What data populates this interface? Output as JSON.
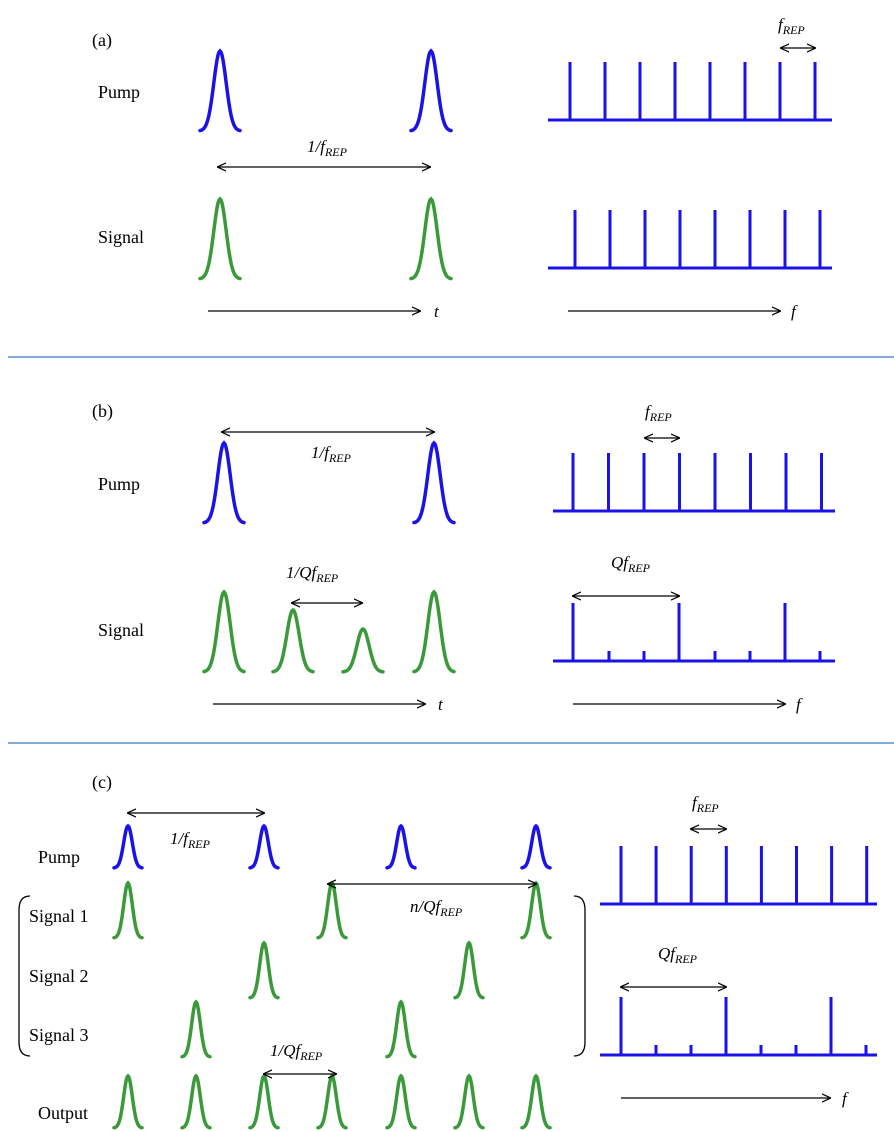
{
  "colors": {
    "pump": "#1a12e6",
    "signal": "#3a9a3a",
    "divider": "#5b8fd0",
    "arrow": "#000000"
  },
  "panel_a": {
    "label": "(a)",
    "pump_label": "Pump",
    "signal_label": "Signal",
    "period_main": "1/f",
    "period_sub": "REP",
    "freq_main": "f",
    "freq_sub": "REP",
    "time_axis": "t",
    "freq_axis": "f"
  },
  "panel_b": {
    "label": "(b)",
    "pump_label": "Pump",
    "signal_label": "Signal",
    "period_main": "1/f",
    "period_sub": "REP",
    "sub_period_main": "1/Qf",
    "sub_period_sub": "REP",
    "freq_main": "f",
    "freq_sub": "REP",
    "q_freq_main": "Qf",
    "q_freq_sub": "REP",
    "time_axis": "t",
    "freq_axis": "f"
  },
  "panel_c": {
    "label": "(c)",
    "pump_label": "Pump",
    "signal1_label": "Signal 1",
    "signal2_label": "Signal 2",
    "signal3_label": "Signal 3",
    "output_label": "Output",
    "period_main": "1/f",
    "period_sub": "REP",
    "n_period_main": "n/Qf",
    "n_period_sub": "REP",
    "sub_period_main": "1/Qf",
    "sub_period_sub": "REP",
    "freq_main": "f",
    "freq_sub": "REP",
    "q_freq_main": "Qf",
    "q_freq_sub": "REP",
    "freq_axis": "f"
  }
}
